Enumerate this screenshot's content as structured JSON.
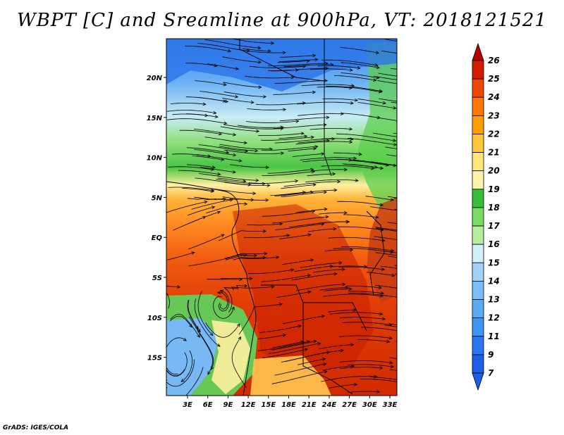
{
  "title": "WBPT [C] and Sreamline at 900hPa, VT: 2018121521",
  "credit": "GrADS: IGES/COLA",
  "map": {
    "lon_labels": [
      "3E",
      "6E",
      "9E",
      "12E",
      "15E",
      "18E",
      "21E",
      "24E",
      "27E",
      "30E",
      "33E"
    ],
    "lat_labels": [
      "20N",
      "15N",
      "10N",
      "5N",
      "EQ",
      "5S",
      "10S",
      "15S"
    ],
    "fields": [
      "wet-bulb potential temperature",
      "streamlines"
    ]
  },
  "colorbar": {
    "labels": [
      "7",
      "9",
      "11",
      "12",
      "13",
      "14",
      "15",
      "16",
      "17",
      "18",
      "19",
      "20",
      "21",
      "22",
      "23",
      "24",
      "25",
      "26"
    ],
    "colors": [
      "#1e5ee6",
      "#2878f0",
      "#3c96f5",
      "#5aaaf5",
      "#78befa",
      "#a0d2fa",
      "#d2f0fa",
      "#b4f0a0",
      "#78dc64",
      "#37be37",
      "#fff5aa",
      "#ffe678",
      "#ffc83c",
      "#ffa000",
      "#ff7800",
      "#f04600",
      "#d21e00",
      "#b40000"
    ]
  }
}
